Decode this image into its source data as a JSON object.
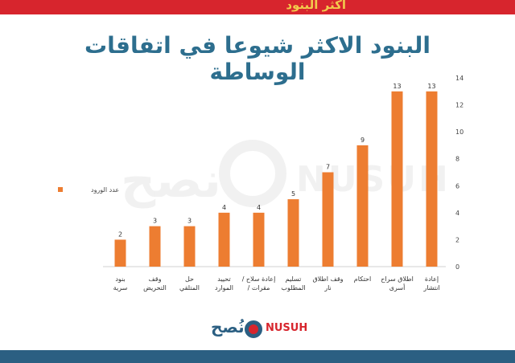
{
  "header_band_text": "أكثر البنود",
  "chart_data": {
    "type": "bar",
    "title": "البنود الاكثر شيوعا في اتفاقات الوساطة",
    "categories": [
      "بنود سرية",
      "وقف التحريض",
      "حل المتلقي",
      "تحييد الموارد",
      "إعادة سلاح / مقرات /",
      "تسليم المطلوب",
      "وقف اطلاق نار",
      "احتكام",
      "اطلاق سراح أسرى",
      "إعادة انتشار"
    ],
    "series": [
      {
        "name": "عدد الورود",
        "values": [
          2,
          3,
          3,
          4,
          4,
          5,
          7,
          9,
          13,
          13
        ]
      }
    ],
    "ylim": [
      0,
      14
    ],
    "yticks": [
      0,
      2,
      4,
      6,
      8,
      10,
      12,
      14
    ],
    "y_axis_side": "right",
    "legend_position": "left",
    "grid": false,
    "bar_color": "#ed7d31"
  },
  "watermark": {
    "ar": "نصح",
    "en": "NUSUH"
  },
  "logo": {
    "ar": "نُصح",
    "en": "NUSUH"
  },
  "colors": {
    "accent_red": "#d7252d",
    "brand_blue": "#2b5f82",
    "title": "#2d6e8e"
  }
}
